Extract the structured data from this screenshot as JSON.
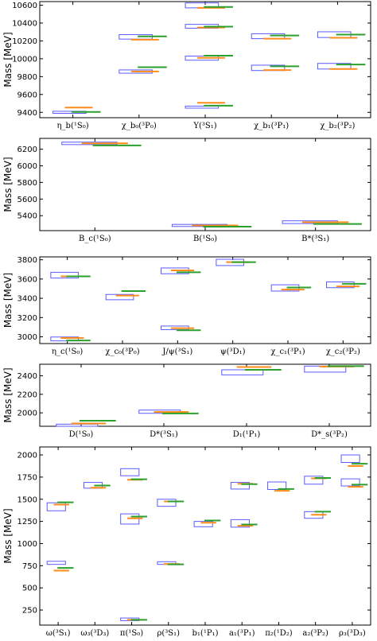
{
  "colors": {
    "box": "#5b5bff",
    "orange": "#ff8c1a",
    "green": "#2ca02c"
  },
  "chart_data": [
    {
      "type": "error-box",
      "ylabel": "Mass [MeV]",
      "ylim": [
        9340,
        10640
      ],
      "yticks": [
        9400,
        9600,
        9800,
        10000,
        10200,
        10400,
        10600
      ],
      "categories": [
        "η_b(¹S₀)",
        "χ_b₀(³P₀)",
        "Υ(³S₁)",
        "χ_b₁(³P₁)",
        "χ_b₂(³P₂)"
      ],
      "levels": [
        {
          "cat": 0,
          "lo": 9389,
          "hi": 9412,
          "orange": 9454,
          "green": 9405
        },
        {
          "cat": 1,
          "lo": 9838,
          "hi": 9875,
          "orange": 9858,
          "green": 9905
        },
        {
          "cat": 1,
          "lo": 10220,
          "hi": 10270,
          "orange": 10214,
          "green": 10250
        },
        {
          "cat": 2,
          "lo": 9447,
          "hi": 9470,
          "orange": 9507,
          "green": 9475
        },
        {
          "cat": 2,
          "lo": 9984,
          "hi": 10030,
          "orange": 10010,
          "green": 10035
        },
        {
          "cat": 2,
          "lo": 10342,
          "hi": 10385,
          "orange": 10350,
          "green": 10360
        },
        {
          "cat": 2,
          "lo": 10570,
          "hi": 10625,
          "orange": 10570,
          "green": 10580
        },
        {
          "cat": 3,
          "lo": 9868,
          "hi": 9928,
          "orange": 9873,
          "green": 9915
        },
        {
          "cat": 3,
          "lo": 10225,
          "hi": 10280,
          "orange": 10225,
          "green": 10260
        },
        {
          "cat": 4,
          "lo": 9885,
          "hi": 9948,
          "orange": 9885,
          "green": 9935
        },
        {
          "cat": 4,
          "lo": 10238,
          "hi": 10302,
          "orange": 10235,
          "green": 10270
        }
      ]
    },
    {
      "type": "error-box",
      "ylabel": "Mass [MeV]",
      "ylim": [
        5220,
        6330
      ],
      "yticks": [
        5400,
        5600,
        5800,
        6000,
        6200
      ],
      "categories": [
        "B_c(¹S₀)",
        "B(¹S₀)",
        "B*(³S₁)"
      ],
      "levels": [
        {
          "cat": 0,
          "lo": 6255,
          "hi": 6285,
          "orange": 6270,
          "green": 6245
        },
        {
          "cat": 1,
          "lo": 5270,
          "hi": 5295,
          "orange": 5282,
          "green": 5268
        },
        {
          "cat": 2,
          "lo": 5305,
          "hi": 5338,
          "orange": 5322,
          "green": 5300
        }
      ]
    },
    {
      "type": "error-box",
      "ylabel": "Mass [MeV]",
      "ylim": [
        2930,
        3830
      ],
      "yticks": [
        3000,
        3200,
        3400,
        3600,
        3800
      ],
      "categories": [
        "η_c(¹S₀)",
        "χ_c₀(³P₀)",
        "J/ψ(³S₁)",
        "ψ(³D₁)",
        "χ_c₁(³P₁)",
        "χ_c₂(³P₂)"
      ],
      "levels": [
        {
          "cat": 0,
          "lo": 2958,
          "hi": 2998,
          "orange": 2988,
          "green": 2962
        },
        {
          "cat": 0,
          "lo": 3610,
          "hi": 3670,
          "orange": 3628,
          "green": 3628
        },
        {
          "cat": 1,
          "lo": 3385,
          "hi": 3440,
          "orange": 3428,
          "green": 3475
        },
        {
          "cat": 2,
          "lo": 3075,
          "hi": 3112,
          "orange": 3090,
          "green": 3068
        },
        {
          "cat": 2,
          "lo": 3655,
          "hi": 3715,
          "orange": 3690,
          "green": 3670
        },
        {
          "cat": 3,
          "lo": 3740,
          "hi": 3805,
          "orange": 3775,
          "green": 3775
        },
        {
          "cat": 4,
          "lo": 3475,
          "hi": 3540,
          "orange": 3490,
          "green": 3512
        },
        {
          "cat": 5,
          "lo": 3510,
          "hi": 3570,
          "orange": 3523,
          "green": 3550
        }
      ]
    },
    {
      "type": "error-box",
      "ylabel": "Mass [MeV]",
      "ylim": [
        1855,
        2525
      ],
      "yticks": [
        2000,
        2200,
        2400
      ],
      "categories": [
        "D(¹S₀)",
        "D*(³S₁)",
        "D₁(¹P₁)",
        "D*_s(³P₂)"
      ],
      "levels": [
        {
          "cat": 0,
          "lo": 1855,
          "hi": 1878,
          "orange": 1885,
          "green": 1915
        },
        {
          "cat": 1,
          "lo": 1995,
          "hi": 2030,
          "orange": 2010,
          "green": 1993
        },
        {
          "cat": 2,
          "lo": 2410,
          "hi": 2465,
          "orange": 2495,
          "green": 2465
        },
        {
          "cat": 3,
          "lo": 2440,
          "hi": 2505,
          "orange": 2500,
          "green": 2505
        }
      ]
    },
    {
      "type": "error-box",
      "ylabel": "Mass [MeV]",
      "ylim": [
        80,
        2090
      ],
      "yticks": [
        250,
        500,
        750,
        1000,
        1250,
        1500,
        1750,
        2000
      ],
      "categories": [
        "ω(³S₁)",
        "ω₃(³D₃)",
        "π(¹S₀)",
        "ρ(³S₁)",
        "b₁(¹P₁)",
        "a₁(³P₁)",
        "π₂(¹D₂)",
        "a₂(³P₂)",
        "ρ₃(³D₃)"
      ],
      "levels": [
        {
          "cat": 0,
          "lo": 1370,
          "hi": 1460,
          "orange": 1440,
          "green": 1465
        },
        {
          "cat": 0,
          "lo": 765,
          "hi": 800,
          "orange": 695,
          "green": 725
        },
        {
          "cat": 1,
          "lo": 1625,
          "hi": 1690,
          "orange": 1630,
          "green": 1655
        },
        {
          "cat": 2,
          "lo": 130,
          "hi": 160,
          "orange": 140,
          "green": 140
        },
        {
          "cat": 2,
          "lo": 1220,
          "hi": 1335,
          "orange": 1285,
          "green": 1305
        },
        {
          "cat": 2,
          "lo": 1765,
          "hi": 1845,
          "orange": 1720,
          "green": 1725
        },
        {
          "cat": 3,
          "lo": 765,
          "hi": 795,
          "orange": 770,
          "green": 765
        },
        {
          "cat": 3,
          "lo": 1420,
          "hi": 1500,
          "orange": 1475,
          "green": 1475
        },
        {
          "cat": 4,
          "lo": 1190,
          "hi": 1250,
          "orange": 1235,
          "green": 1260
        },
        {
          "cat": 5,
          "lo": 1185,
          "hi": 1270,
          "orange": 1200,
          "green": 1215
        },
        {
          "cat": 5,
          "lo": 1615,
          "hi": 1690,
          "orange": 1675,
          "green": 1670
        },
        {
          "cat": 6,
          "lo": 1610,
          "hi": 1695,
          "orange": 1595,
          "green": 1615
        },
        {
          "cat": 7,
          "lo": 1285,
          "hi": 1360,
          "orange": 1325,
          "green": 1360
        },
        {
          "cat": 7,
          "lo": 1670,
          "hi": 1760,
          "orange": 1735,
          "green": 1740
        },
        {
          "cat": 8,
          "lo": 1650,
          "hi": 1730,
          "orange": 1640,
          "green": 1665
        },
        {
          "cat": 8,
          "lo": 1915,
          "hi": 2000,
          "orange": 1875,
          "green": 1900
        }
      ]
    }
  ]
}
